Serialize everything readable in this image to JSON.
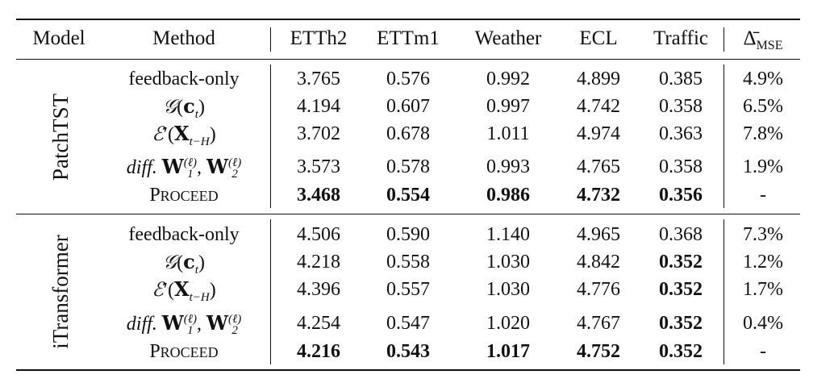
{
  "table": {
    "headers": {
      "model": "Model",
      "method": "Method",
      "datasets": [
        "ETTh2",
        "ETTm1",
        "Weather",
        "ECL",
        "Traffic"
      ],
      "delta_main": "Δ̄",
      "delta_sub": "MSE"
    },
    "groups": [
      {
        "model": "PatchTST",
        "rows": [
          {
            "method": "feedback-only",
            "values": [
              "3.765",
              "0.576",
              "0.992",
              "4.899",
              "0.385"
            ],
            "delta": "4.9%"
          },
          {
            "method": "G(c_t)",
            "values": [
              "4.194",
              "0.607",
              "0.997",
              "4.742",
              "0.358"
            ],
            "delta": "6.5%"
          },
          {
            "method": "E'(X_{t-H})",
            "values": [
              "3.702",
              "0.678",
              "1.011",
              "4.974",
              "0.363"
            ],
            "delta": "7.8%"
          },
          {
            "method": "diff. W1, W2",
            "values": [
              "3.573",
              "0.578",
              "0.993",
              "4.765",
              "0.358"
            ],
            "delta": "1.9%"
          },
          {
            "method": "PROCEED",
            "values": [
              "3.468",
              "0.554",
              "0.986",
              "4.732",
              "0.356"
            ],
            "delta": "-"
          }
        ]
      },
      {
        "model": "iTransformer",
        "rows": [
          {
            "method": "feedback-only",
            "values": [
              "4.506",
              "0.590",
              "1.140",
              "4.965",
              "0.368"
            ],
            "delta": "7.3%"
          },
          {
            "method": "G(c_t)",
            "values": [
              "4.218",
              "0.558",
              "1.030",
              "4.842",
              "0.352"
            ],
            "delta": "1.2%"
          },
          {
            "method": "E'(X_{t-H})",
            "values": [
              "4.396",
              "0.557",
              "1.030",
              "4.776",
              "0.352"
            ],
            "delta": "1.7%"
          },
          {
            "method": "diff. W1, W2",
            "values": [
              "4.254",
              "0.547",
              "1.020",
              "4.767",
              "0.352"
            ],
            "delta": "0.4%"
          },
          {
            "method": "PROCEED",
            "values": [
              "4.216",
              "0.543",
              "1.017",
              "4.752",
              "0.352"
            ],
            "delta": "-"
          }
        ]
      }
    ],
    "math_parts": {
      "g_letter": "𝒢",
      "c_letter": "c",
      "t_sub": "t",
      "e_letter": "ℰ",
      "prime": "′",
      "x_letter": "X",
      "tH_sub": "t−H",
      "diff_word": "diff.",
      "w_letter": "W",
      "ell_sup": "(ℓ)",
      "one_sub": "1",
      "two_sub": "2",
      "proceed_first": "P",
      "proceed_rest": "ROCEED"
    }
  }
}
